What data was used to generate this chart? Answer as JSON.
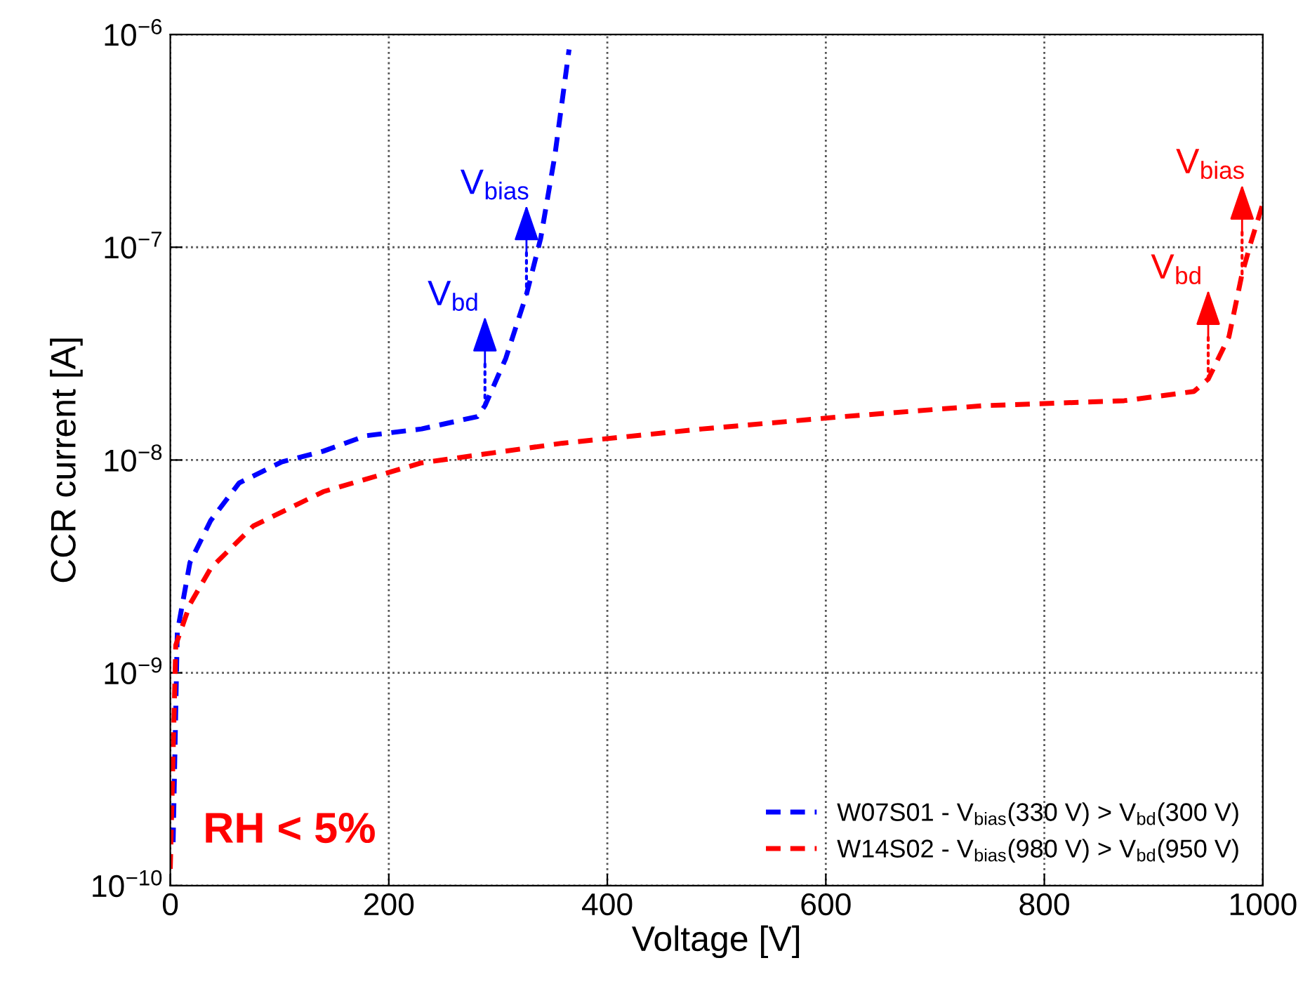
{
  "chart_data": {
    "type": "line",
    "xlabel": "Voltage [V]",
    "ylabel": "CCR current [A]",
    "xlim": [
      0,
      1000
    ],
    "xticks": [
      0,
      200,
      400,
      600,
      800,
      1000
    ],
    "ylim": [
      1e-10,
      1e-06
    ],
    "yticks": [
      {
        "value": 1e-10,
        "label": "10$^{−10}$"
      },
      {
        "value": 1e-09,
        "label": "10$^{−9}$"
      },
      {
        "value": 1e-08,
        "label": "10$^{−8}$"
      },
      {
        "value": 1e-07,
        "label": "10$^{−7}$"
      },
      {
        "value": 1e-06,
        "label": "10$^{−6}$"
      }
    ],
    "log": "y",
    "grid": true,
    "legend": "bottom right",
    "line_style": "dashed",
    "marker": "none",
    "series": [
      {
        "name": "W07S01 - V$_{bias}$(330 V) > V$_{bd}$(300 V)",
        "color": "#0000ff",
        "x": [
          2.6,
          6.4,
          18,
          37,
          63,
          102,
          140,
          179,
          230,
          281,
          288,
          307,
          326,
          339,
          352,
          365
        ],
        "values": [
          1.6e-10,
          1.55e-09,
          3.3e-09,
          5.2e-09,
          7.8e-09,
          9.8e-09,
          1.1e-08,
          1.3e-08,
          1.4e-08,
          1.6e-08,
          1.8e-08,
          3e-08,
          6e-08,
          1.1e-07,
          2.7e-07,
          8.5e-07
        ]
      },
      {
        "name": "W14S02 - V$_{bias}$(980 V) > V$_{bd}$(950 V)",
        "color": "#ff0000",
        "x": [
          0,
          5,
          18,
          37,
          76,
          140,
          230,
          359,
          487,
          616,
          744,
          873,
          937,
          950,
          969,
          981,
          989,
          1000
        ],
        "values": [
          1.2e-10,
          1.35e-09,
          2.1e-09,
          3.1e-09,
          4.9e-09,
          7.1e-09,
          9.7e-09,
          1.2e-08,
          1.4e-08,
          1.6e-08,
          1.8e-08,
          1.9e-08,
          2.1e-08,
          2.4e-08,
          3.8e-08,
          7.5e-08,
          1.05e-07,
          1.6e-07
        ]
      }
    ],
    "annotations": [
      {
        "text": "V$_{bd}$",
        "x": 288,
        "y": 1.8e-08
      },
      {
        "text": "V$_{bias}$",
        "x": 326,
        "y": 6e-08
      },
      {
        "text": "V$_{bd}$",
        "x": 950,
        "y": 2.4e-08
      },
      {
        "text": "V$_{bias}$",
        "x": 981,
        "y": 7.5e-08
      },
      "RH < 5%"
    ]
  }
}
